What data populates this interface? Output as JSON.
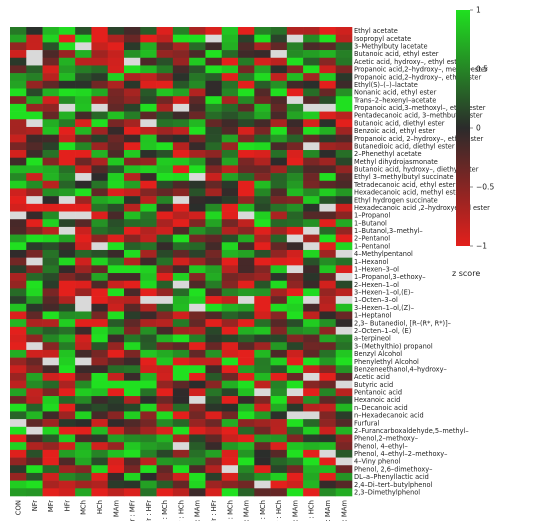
{
  "chart_data": {
    "type": "heatmap",
    "title": "",
    "xlabel": "",
    "ylabel": "",
    "columns": [
      "CON",
      "NFr",
      "MFr",
      "HFr",
      "MCh",
      "HCh",
      "MAm",
      "NFr : MFr",
      "NFr : HFr",
      "NFr : MCh",
      "NFr : HCh",
      "NFr : MAm",
      "MFr : HFr",
      "MFr : MCh",
      "MFr : MAm",
      "HFr : MCh",
      "HFr : HCh",
      "HFr : MAm",
      "MCh : HCh",
      "MCh : MAm",
      "HCh : MAm"
    ],
    "rows": [
      "Ethyl acetate",
      "Isopropyl acetate",
      "3–Methylbuty lacetate",
      "Butanoic acid, ethyl ester",
      "Acetic acid, hydroxy–, ethyl ester",
      "Propanoic acid,2–hydroxy–, methyl ester",
      "Propanoic acid,2–hydroxy–, ethyl ester",
      "Ethyl(S)–(–)–lactate",
      "Nonanic acid, ethyl ester",
      "Trans–2–hexenyl–acetate",
      "Propanoic acid,3–methoxyl–, ethyl ester",
      "Pentadecanoic acid, 3–methbutyl ester",
      "Butanoic acid, diethyl ester",
      "Benzoic acid, ethyl ester",
      "Propanoic acid, 2–hydroxy–, ethyl ester",
      "Butanedioic acid, diethyl ester",
      "2–Phenethyl acetate",
      "Methyl dihydrojasmonate",
      "Butanoic acid, hydroxy–, diethyl ester",
      "Ethyl 3–methylbutyl succinate",
      "Tetradecanoic acid, ethyl ester",
      "Hexadecanoic acid, methyl ester",
      "Ethyl hydrogen succinate",
      "Hexadecanoic acid ,2–hydroxyethyl ester",
      "1–Propanol",
      "1–Butanol",
      "1–Butanol,3–methyl–",
      "2–Pentanol",
      "1–Pentanol",
      "4–Methylpentanol",
      "1–Hexanol",
      "1–Hexen–3–ol",
      "1–Propanol,3–ethoxy–",
      "2–Hexen–1–ol",
      "3–Hexen–1–ol,(E)–",
      "1–Octen–3–ol",
      "3–Hexen–1–ol,(Z)–",
      "1–Heptanol",
      "2,3– Butanediol, [R–(R*, R*)]–",
      "2–Octen–1–ol, (E)",
      "a–terpineol",
      "3–(Methylthio) propanol",
      "Benzyl Alcohol",
      "Phenylethyl Alcohol",
      "Benzeneethanol,4–hydroxy–",
      "Acetic acid",
      "Butyric acid",
      "Pentanoic acid",
      "Hexanoic acid",
      "n–Decanoic acid",
      "n–Hexadecanoic acid",
      "Furfural",
      "2–Furancarboxaldehyde,5–methyl–",
      "Phenol,2–methoxy–",
      "Phenol, 4–ethyl–",
      "Phenol, 4–ethyl–2–methoxy–",
      "4–Viny phenol",
      "Phenol, 2,6–dimethoxy–",
      "DL–a–Phenyllactic acid",
      "2,4–Di–tert–butylphenol",
      "2,3–Dimethylphenol"
    ],
    "values": [],
    "zlim": [
      -1,
      1
    ],
    "legend": {
      "title": "z score",
      "ticks": [
        "1",
        "0.5",
        "0",
        "−0.5",
        "−1"
      ],
      "low_color": "#e3201c",
      "mid_color": "#2b2b2b",
      "high_color": "#20e020"
    },
    "missing_color": "#d9d9d9"
  }
}
